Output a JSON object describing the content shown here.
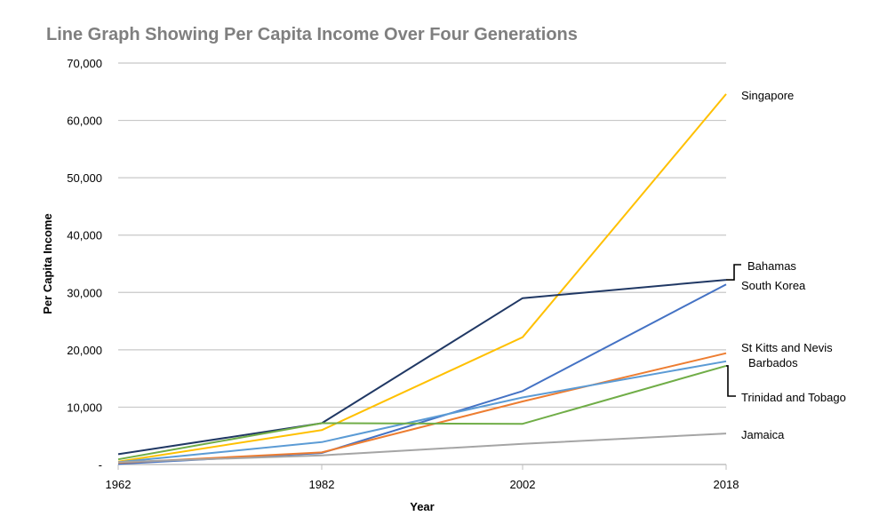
{
  "chart_data": {
    "type": "line",
    "title": "Line Graph Showing Per Capita Income Over Four Generations",
    "xlabel": "Year",
    "ylabel": "Per Capita Income",
    "x": [
      1962,
      1982,
      2002,
      2018
    ],
    "x_tick_labels": [
      "1962",
      "1982",
      "2002",
      "2018"
    ],
    "ylim": [
      0,
      70000
    ],
    "y_ticks": [
      0,
      10000,
      20000,
      30000,
      40000,
      50000,
      60000,
      70000
    ],
    "y_tick_labels": [
      "-",
      "10,000",
      "20,000",
      "30,000",
      "40,000",
      "50,000",
      "60,000",
      "70,000"
    ],
    "grid": "horizontal",
    "legend": "direct labels at right",
    "series": [
      {
        "name": "Singapore",
        "color": "#FFC000",
        "values": [
          500,
          6000,
          22200,
          64600
        ]
      },
      {
        "name": "Bahamas",
        "color": "#203864",
        "values": [
          1800,
          7200,
          29000,
          32200
        ]
      },
      {
        "name": "South Korea",
        "color": "#4472C4",
        "values": [
          100,
          2000,
          12800,
          31400
        ]
      },
      {
        "name": "St Kitts and Nevis",
        "color": "#ED7D31",
        "values": [
          300,
          2100,
          11000,
          19400
        ]
      },
      {
        "name": "Barbados",
        "color": "#5B9BD5",
        "values": [
          400,
          3900,
          11700,
          18000
        ]
      },
      {
        "name": "Trinidad and Tobago",
        "color": "#70AD47",
        "values": [
          900,
          7200,
          7100,
          17200
        ]
      },
      {
        "name": "Jamaica",
        "color": "#A5A5A5",
        "values": [
          400,
          1600,
          3600,
          5400
        ]
      }
    ]
  }
}
